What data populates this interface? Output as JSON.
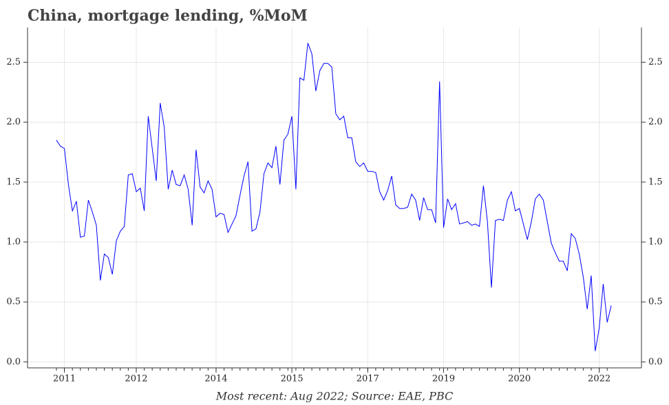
{
  "chart_data": {
    "type": "line",
    "title": "China, mortgage lending, %MoM",
    "footnote": "Most recent: Aug 2022; Source: EAE, PBC",
    "categories": [
      null,
      null,
      "2011",
      null,
      null,
      null,
      null,
      null,
      null,
      null,
      null,
      null,
      null,
      null,
      null,
      null,
      null,
      null,
      null,
      null,
      "2012",
      null,
      null,
      null,
      null,
      null,
      null,
      null,
      null,
      null,
      null,
      null,
      null,
      null,
      null,
      null,
      null,
      null,
      null,
      null,
      "2014",
      null,
      null,
      null,
      null,
      null,
      null,
      null,
      null,
      null,
      null,
      null,
      null,
      null,
      null,
      null,
      null,
      null,
      null,
      "2015",
      null,
      null,
      null,
      null,
      null,
      null,
      null,
      null,
      null,
      null,
      null,
      null,
      null,
      null,
      null,
      null,
      null,
      null,
      "2017",
      null,
      null,
      null,
      null,
      null,
      null,
      null,
      null,
      null,
      null,
      null,
      null,
      null,
      null,
      null,
      null,
      null,
      null,
      "2019",
      null,
      null,
      null,
      null,
      null,
      null,
      null,
      null,
      null,
      null,
      null,
      null,
      null,
      null,
      null,
      null,
      null,
      null,
      "2020",
      null,
      null,
      null,
      null,
      null,
      null,
      null,
      null,
      null,
      null,
      null,
      null,
      null,
      null,
      null,
      null,
      null,
      null,
      null,
      "2022",
      null,
      null,
      null
    ],
    "values": [
      1.85,
      1.8,
      1.78,
      1.48,
      1.26,
      1.34,
      1.04,
      1.05,
      1.35,
      1.25,
      1.14,
      0.68,
      0.9,
      0.87,
      0.73,
      1.01,
      1.09,
      1.13,
      1.56,
      1.57,
      1.42,
      1.45,
      1.26,
      2.05,
      1.78,
      1.51,
      2.16,
      1.96,
      1.44,
      1.6,
      1.48,
      1.47,
      1.56,
      1.44,
      1.14,
      1.77,
      1.46,
      1.41,
      1.51,
      1.44,
      1.21,
      1.24,
      1.23,
      1.08,
      1.15,
      1.22,
      1.39,
      1.55,
      1.67,
      1.09,
      1.11,
      1.25,
      1.57,
      1.66,
      1.62,
      1.8,
      1.48,
      1.85,
      1.9,
      2.05,
      1.44,
      2.37,
      2.35,
      2.66,
      2.57,
      2.26,
      2.43,
      2.49,
      2.49,
      2.46,
      2.07,
      2.02,
      2.05,
      1.87,
      1.87,
      1.67,
      1.63,
      1.66,
      1.59,
      1.59,
      1.58,
      1.42,
      1.35,
      1.43,
      1.55,
      1.31,
      1.28,
      1.28,
      1.29,
      1.4,
      1.35,
      1.18,
      1.37,
      1.27,
      1.27,
      1.16,
      2.34,
      1.12,
      1.36,
      1.27,
      1.32,
      1.15,
      1.16,
      1.17,
      1.14,
      1.15,
      1.13,
      1.47,
      1.17,
      0.62,
      1.18,
      1.19,
      1.18,
      1.35,
      1.42,
      1.26,
      1.28,
      1.15,
      1.02,
      1.17,
      1.36,
      1.4,
      1.35,
      1.17,
      0.99,
      0.91,
      0.84,
      0.84,
      0.76,
      1.07,
      1.03,
      0.9,
      0.71,
      0.44,
      0.72,
      0.09,
      0.28,
      0.65,
      0.33,
      0.47
    ],
    "color": "#0000ff",
    "ylim": [
      -0.05,
      2.79
    ],
    "yticks": [
      {
        "value": 0,
        "label": "0.0"
      },
      0.5,
      {
        "value": 1,
        "label": "1.0"
      },
      1.5,
      {
        "value": 2,
        "label": "2.0"
      },
      2.5
    ],
    "grid": true
  }
}
